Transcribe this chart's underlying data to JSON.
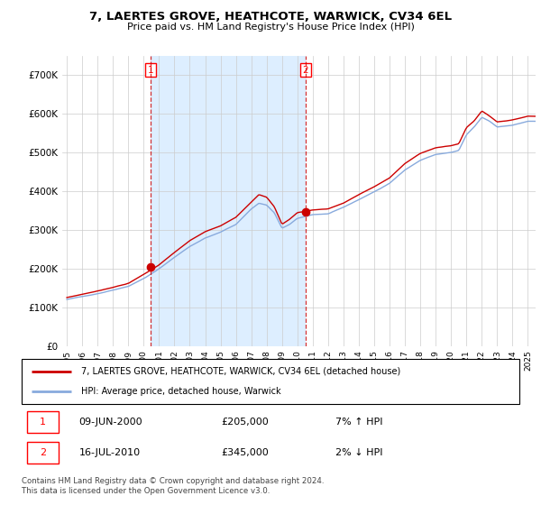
{
  "title": "7, LAERTES GROVE, HEATHCOTE, WARWICK, CV34 6EL",
  "subtitle": "Price paid vs. HM Land Registry's House Price Index (HPI)",
  "ylim": [
    0,
    750000
  ],
  "yticks": [
    0,
    100000,
    200000,
    300000,
    400000,
    500000,
    600000,
    700000
  ],
  "ytick_labels": [
    "£0",
    "£100K",
    "£200K",
    "£300K",
    "£400K",
    "£500K",
    "£600K",
    "£700K"
  ],
  "background_color": "#ffffff",
  "plot_bg_color": "#ffffff",
  "grid_color": "#cccccc",
  "shade_color": "#ddeeff",
  "line1_color": "#cc0000",
  "line2_color": "#88aadd",
  "legend1_label": "7, LAERTES GROVE, HEATHCOTE, WARWICK, CV34 6EL (detached house)",
  "legend2_label": "HPI: Average price, detached house, Warwick",
  "transaction1_date": "09-JUN-2000",
  "transaction1_price": "£205,000",
  "transaction1_hpi": "7% ↑ HPI",
  "transaction2_date": "16-JUL-2010",
  "transaction2_price": "£345,000",
  "transaction2_hpi": "2% ↓ HPI",
  "footer": "Contains HM Land Registry data © Crown copyright and database right 2024.\nThis data is licensed under the Open Government Licence v3.0.",
  "marker1_year": 2000.44,
  "marker1_value": 205000,
  "marker2_year": 2010.54,
  "marker2_value": 345000,
  "xlim_left": 1995.0,
  "xlim_right": 2025.5
}
